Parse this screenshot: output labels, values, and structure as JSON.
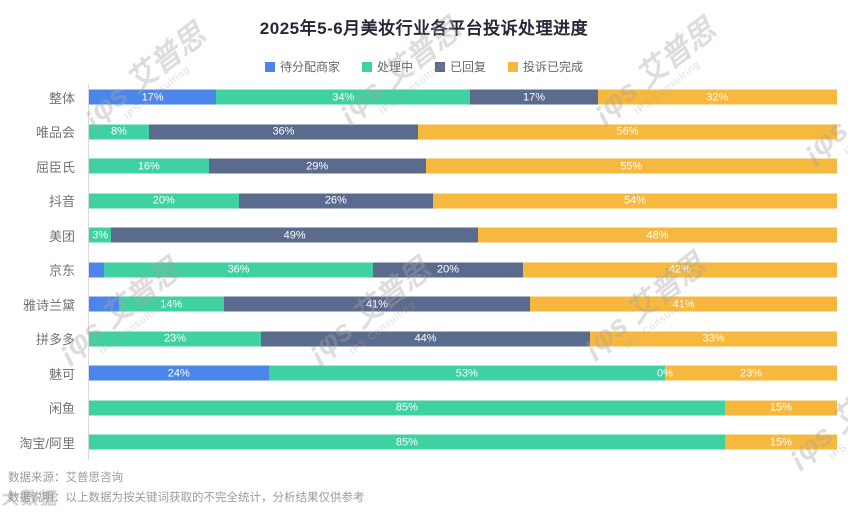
{
  "title": "2025年5-6月美妆行业各平台投诉处理进度",
  "footer": {
    "source": "数据来源：艾普思咨询",
    "note": "数据说明：以上数据为按关键词获取的不完全统计，分析结果仅供参考",
    "overlay_watermark": "大数据"
  },
  "watermark": {
    "logo": "¡φs",
    "brand": "艾普思",
    "subtext": "IPS Consulting"
  },
  "colors": {
    "pending": "#4c86ea",
    "processing": "#40d1a2",
    "replied": "#5a6b8d",
    "completed": "#f6b83e",
    "title_text": "#27273a",
    "category_text": "#737373",
    "bar_label_text": "#ffffff",
    "footer_text": "#9b9b9b",
    "axis_line": "#d9d9d9"
  },
  "chart_data": {
    "type": "bar",
    "variant": "horizontal-stacked",
    "stacked": true,
    "unit": "%",
    "xlim": [
      0,
      100
    ],
    "grid": false,
    "legend_position": "top",
    "title": "2025年5-6月美妆行业各平台投诉处理进度",
    "categories": [
      "整体",
      "唯品会",
      "屈臣氏",
      "抖音",
      "美团",
      "京东",
      "雅诗兰黛",
      "拼多多",
      "魅可",
      "闲鱼",
      "淘宝/阿里"
    ],
    "series": [
      {
        "key": "pending",
        "name": "待分配商家",
        "color": "#4c86ea",
        "values": [
          17,
          0,
          0,
          0,
          0,
          2,
          4,
          0,
          24,
          0,
          0
        ],
        "labels": [
          "17%",
          "",
          "",
          "",
          "",
          "",
          "",
          "",
          "24%",
          "",
          ""
        ]
      },
      {
        "key": "processing",
        "name": "处理中",
        "color": "#40d1a2",
        "values": [
          34,
          8,
          16,
          20,
          3,
          36,
          14,
          23,
          53,
          85,
          85
        ],
        "labels": [
          "34%",
          "8%",
          "16%",
          "20%",
          "3%",
          "36%",
          "14%",
          "23%",
          "53%",
          "85%",
          "85%"
        ]
      },
      {
        "key": "replied",
        "name": "已回复",
        "color": "#5a6b8d",
        "values": [
          17,
          36,
          29,
          26,
          49,
          20,
          41,
          44,
          0,
          0,
          0
        ],
        "labels": [
          "17%",
          "36%",
          "29%",
          "26%",
          "49%",
          "20%",
          "41%",
          "44%",
          "0%",
          "",
          ""
        ]
      },
      {
        "key": "completed",
        "name": "投诉已完成",
        "color": "#f6b83e",
        "values": [
          32,
          56,
          55,
          54,
          48,
          42,
          41,
          33,
          23,
          15,
          15
        ],
        "labels": [
          "32%",
          "56%",
          "55%",
          "54%",
          "48%",
          "42%",
          "41%",
          "33%",
          "23%",
          "15%",
          "15%"
        ]
      }
    ]
  }
}
